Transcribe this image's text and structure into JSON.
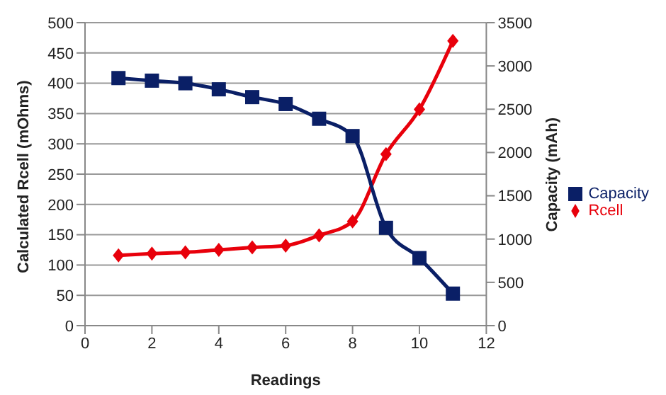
{
  "chart_data": {
    "type": "line",
    "xlabel": "Readings",
    "ylabel": "Calculated Rcell (mOhms)",
    "y2label": "Capacity (mAh)",
    "x": [
      1,
      2,
      3,
      4,
      5,
      6,
      7,
      8,
      9,
      10,
      11
    ],
    "series": [
      {
        "name": "Rcell",
        "color": "#e8000b",
        "marker": "diamond",
        "values": [
          116,
          119,
          121,
          125,
          129,
          132,
          149,
          172,
          283,
          357,
          470
        ]
      },
      {
        "name": "Capacity",
        "color": "#0a1f66",
        "marker": "square",
        "axis": "y2",
        "values": [
          2860,
          2830,
          2800,
          2730,
          2640,
          2560,
          2390,
          2190,
          1130,
          780,
          370
        ]
      }
    ],
    "xlim": [
      0,
      12
    ],
    "xticks": [
      0,
      2,
      4,
      6,
      8,
      10,
      12
    ],
    "ylim": [
      0,
      500
    ],
    "yticks": [
      0,
      50,
      100,
      150,
      200,
      250,
      300,
      350,
      400,
      450,
      500
    ],
    "y2lim": [
      0,
      3500
    ],
    "y2ticks": [
      0,
      500,
      1000,
      1500,
      2000,
      2500,
      3000,
      3500
    ],
    "grid": "y",
    "legend": "right"
  }
}
